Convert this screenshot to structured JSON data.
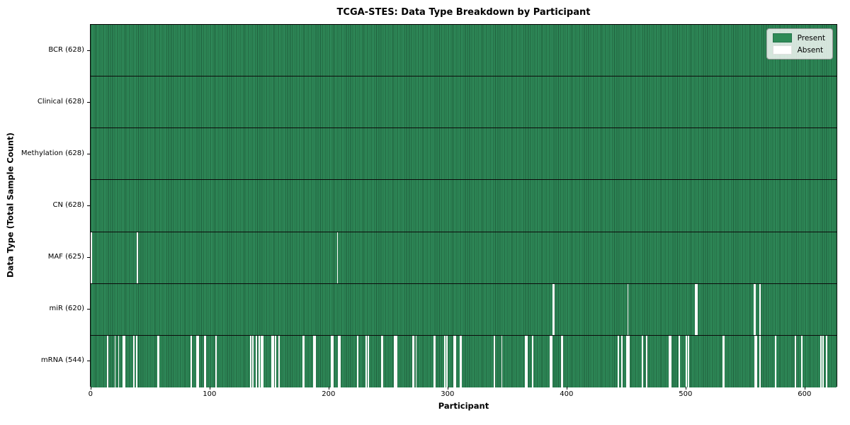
{
  "figure": {
    "title": "TCGA-STES: Data Type Breakdown by Participant"
  },
  "axes": {
    "xlabel": "Participant",
    "ylabel": "Data Type (Total Sample Count)"
  },
  "legend": {
    "items": [
      {
        "label": "Present",
        "color": "#2e8b57"
      },
      {
        "label": "Absent",
        "color": "#ffffff"
      }
    ]
  },
  "colors": {
    "present": "#2e8b57",
    "present_stripe_dark": "#1e5c3a",
    "absent": "#ffffff",
    "row_divider": "#0b0b0b"
  },
  "chart_data": {
    "type": "heatmap",
    "title": "TCGA-STES: Data Type Breakdown by Participant",
    "xlabel": "Participant",
    "ylabel": "Data Type (Total Sample Count)",
    "legend_position": "upper right",
    "legend_entries": [
      "Present",
      "Absent"
    ],
    "grid": false,
    "total_participants": 628,
    "x_range": [
      0,
      628
    ],
    "x_tick_values": [
      0,
      100,
      200,
      300,
      400,
      500,
      600
    ],
    "present_color": "#2e8b57",
    "absent_color": "#ffffff",
    "rows": [
      {
        "label": "BCR (628)",
        "data_type": "BCR",
        "present_count": 628,
        "absent_count": 0,
        "absent_participants": []
      },
      {
        "label": "Clinical (628)",
        "data_type": "Clinical",
        "present_count": 628,
        "absent_count": 0,
        "absent_participants": []
      },
      {
        "label": "Methylation (628)",
        "data_type": "Methylation",
        "present_count": 628,
        "absent_count": 0,
        "absent_participants": []
      },
      {
        "label": "CN (628)",
        "data_type": "CN",
        "present_count": 628,
        "absent_count": 0,
        "absent_participants": []
      },
      {
        "label": "MAF (625)",
        "data_type": "MAF",
        "present_count": 625,
        "absent_count": 3,
        "absent_participants": [
          0,
          39,
          207
        ]
      },
      {
        "label": "miR (620)",
        "data_type": "miR",
        "present_count": 620,
        "absent_count": 8,
        "absent_participants": [
          388,
          389,
          451,
          508,
          509,
          557,
          558,
          562
        ]
      },
      {
        "label": "mRNA (544)",
        "data_type": "mRNA",
        "present_count": 544,
        "absent_count": 84,
        "absent_participants": [
          14,
          20,
          23,
          27,
          28,
          36,
          38,
          56,
          57,
          84,
          89,
          90,
          95,
          96,
          105,
          134,
          136,
          139,
          141,
          143,
          144,
          152,
          153,
          155,
          158,
          178,
          179,
          187,
          188,
          202,
          203,
          208,
          209,
          224,
          231,
          233,
          244,
          245,
          255,
          256,
          257,
          270,
          271,
          273,
          288,
          289,
          297,
          299,
          305,
          306,
          310,
          311,
          339,
          345,
          365,
          366,
          371,
          386,
          387,
          395,
          396,
          443,
          446,
          450,
          451,
          452,
          463,
          467,
          486,
          487,
          494,
          500,
          502,
          531,
          532,
          558,
          559,
          562,
          575,
          592,
          597,
          613,
          615,
          618
        ]
      }
    ]
  }
}
